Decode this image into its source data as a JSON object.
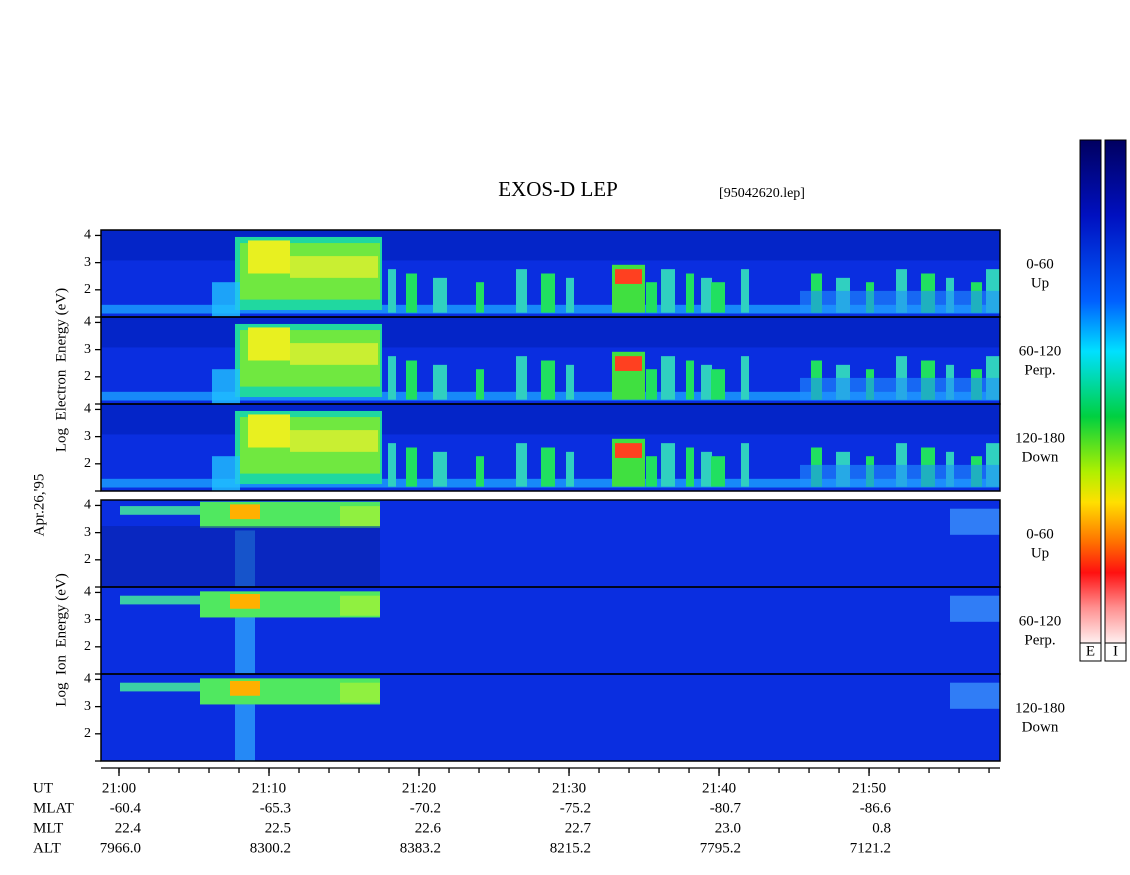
{
  "chart_data": {
    "type": "spectrogram",
    "title": "EXOS-D LEP",
    "subtitle": "[95042620.lep]",
    "date": "Apr.26,'95",
    "xlim": [
      1258.8,
      1318.73
    ],
    "xticks": [
      {
        "value": 1260,
        "label": "21:00"
      },
      {
        "value": 1270,
        "label": "21:10"
      },
      {
        "value": 1280,
        "label": "21:20"
      },
      {
        "value": 1290,
        "label": "21:30"
      },
      {
        "value": 1300,
        "label": "21:40"
      },
      {
        "value": 1310,
        "label": "21:50"
      }
    ],
    "ylim": [
      1,
      4.2
    ],
    "yticks": [
      2,
      3,
      4
    ],
    "groups": [
      {
        "ylabel": "Log  Electron  Energy (eV)",
        "colorbar": "E",
        "panels": [
          {
            "angle": "0-60",
            "direction": "Up"
          },
          {
            "angle": "60-120",
            "direction": "Perp."
          },
          {
            "angle": "120-180",
            "direction": "Down"
          }
        ]
      },
      {
        "ylabel": "Log  Ion  Energy (eV)",
        "colorbar": "I",
        "panels": [
          {
            "angle": "0-60",
            "direction": "Up"
          },
          {
            "angle": "60-120",
            "direction": "Perp."
          },
          {
            "angle": "120-180",
            "direction": "Down"
          }
        ]
      }
    ],
    "orbit": {
      "time_label": "UT",
      "rows": [
        {
          "name": "MLAT",
          "values": [
            "-60.4",
            "-65.3",
            "-70.2",
            "-75.2",
            "-80.7",
            "-86.6"
          ]
        },
        {
          "name": "MLT",
          "values": [
            "22.4",
            "22.5",
            "22.6",
            "22.7",
            "23.0",
            "0.8"
          ]
        },
        {
          "name": "ALT",
          "values": [
            "7966.0",
            "8300.2",
            "8383.2",
            "8215.2",
            "7795.2",
            "7121.2"
          ]
        }
      ]
    }
  }
}
